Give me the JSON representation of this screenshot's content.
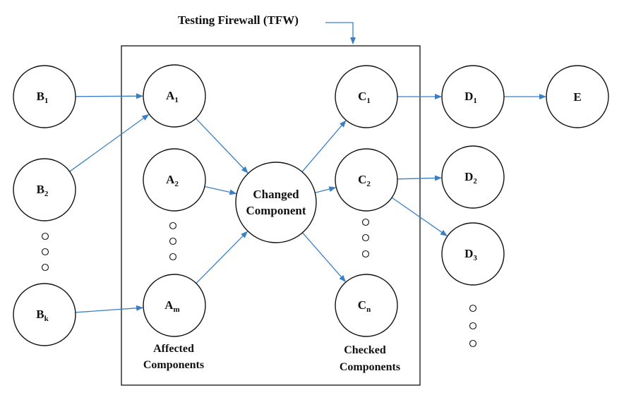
{
  "title": "Testing Firewall (TFW)",
  "labels": {
    "affected_line1": "Affected",
    "affected_line2": "Components",
    "checked_line1": "Checked",
    "checked_line2": "Components"
  },
  "nodes": {
    "B1": {
      "main": "B",
      "sub": "1"
    },
    "B2": {
      "main": "B",
      "sub": "2"
    },
    "Bk": {
      "main": "B",
      "sub": "k"
    },
    "A1": {
      "main": "A",
      "sub": "1"
    },
    "A2": {
      "main": "A",
      "sub": "2"
    },
    "Am": {
      "main": "A",
      "sub": "m"
    },
    "CC": {
      "line1": "Changed",
      "line2": "Component"
    },
    "C1": {
      "main": "C",
      "sub": "1"
    },
    "C2": {
      "main": "C",
      "sub": "2"
    },
    "Cn": {
      "main": "C",
      "sub": "n"
    },
    "D1": {
      "main": "D",
      "sub": "1"
    },
    "D2": {
      "main": "D",
      "sub": "2"
    },
    "D3": {
      "main": "D",
      "sub": "3"
    },
    "E": {
      "main": "E"
    }
  },
  "edges": [
    [
      "B1",
      "A1"
    ],
    [
      "B2",
      "A1"
    ],
    [
      "Bk",
      "Am"
    ],
    [
      "A1",
      "CC"
    ],
    [
      "A2",
      "CC"
    ],
    [
      "Am",
      "CC"
    ],
    [
      "CC",
      "C1"
    ],
    [
      "CC",
      "C2"
    ],
    [
      "CC",
      "Cn"
    ],
    [
      "C1",
      "D1"
    ],
    [
      "D1",
      "E"
    ],
    [
      "C2",
      "D2"
    ],
    [
      "C2",
      "D3"
    ]
  ],
  "colors": {
    "edge": "#3a7fc4",
    "stroke": "#111111",
    "background": "#ffffff"
  }
}
